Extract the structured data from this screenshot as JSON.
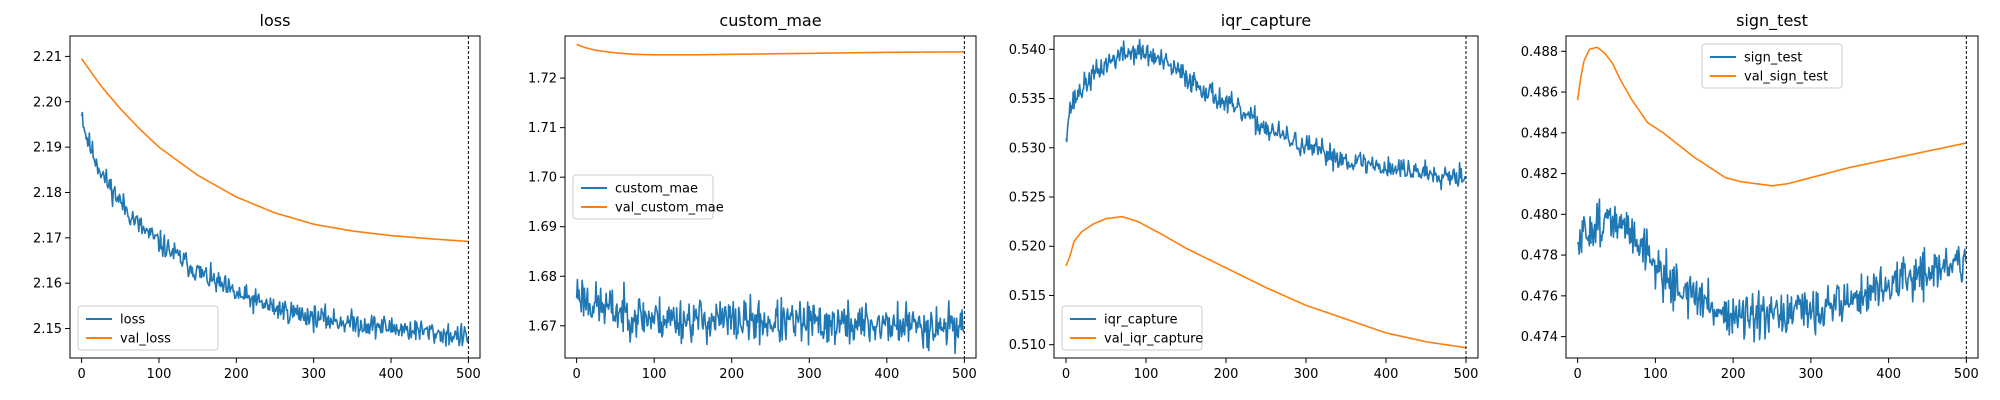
{
  "figure": {
    "background": "#ffffff"
  },
  "chart_data": [
    {
      "type": "line",
      "title": "loss",
      "xlabel": "",
      "ylabel": "",
      "xlim": [
        -15,
        515
      ],
      "ylim": [
        2.1435,
        2.2145
      ],
      "xticks": [
        0,
        100,
        200,
        300,
        400,
        500
      ],
      "yticks": [
        2.15,
        2.16,
        2.17,
        2.18,
        2.19,
        2.2,
        2.21
      ],
      "ytick_labels": [
        "2.15",
        "2.16",
        "2.17",
        "2.18",
        "2.19",
        "2.20",
        "2.21"
      ],
      "vline_x": 500,
      "legend_loc": "lower-left",
      "series": [
        {
          "name": "loss",
          "color": "#1f77b4",
          "noisy": true,
          "noise": 0.0013,
          "seed": 11,
          "x": [
            0,
            2,
            5,
            10,
            20,
            30,
            50,
            75,
            100,
            150,
            200,
            250,
            300,
            350,
            400,
            450,
            500
          ],
          "values": [
            2.1985,
            2.196,
            2.193,
            2.1905,
            2.1865,
            2.183,
            2.178,
            2.1725,
            2.169,
            2.1625,
            2.1575,
            2.1545,
            2.1525,
            2.1512,
            2.1502,
            2.1492,
            2.148
          ]
        },
        {
          "name": "val_loss",
          "color": "#ff7f0e",
          "noisy": false,
          "x": [
            0,
            25,
            50,
            75,
            100,
            150,
            200,
            250,
            300,
            350,
            400,
            450,
            500
          ],
          "values": [
            2.2095,
            2.2035,
            2.1985,
            2.194,
            2.19,
            2.1838,
            2.179,
            2.1755,
            2.173,
            2.1715,
            2.1705,
            2.1698,
            2.1692
          ]
        }
      ]
    },
    {
      "type": "line",
      "title": "custom_mae",
      "xlabel": "",
      "ylabel": "",
      "xlim": [
        -15,
        515
      ],
      "ylim": [
        1.6635,
        1.7285
      ],
      "xticks": [
        0,
        100,
        200,
        300,
        400,
        500
      ],
      "yticks": [
        1.67,
        1.68,
        1.69,
        1.7,
        1.71,
        1.72
      ],
      "ytick_labels": [
        "1.67",
        "1.68",
        "1.69",
        "1.70",
        "1.71",
        "1.72"
      ],
      "vline_x": 500,
      "legend_loc": "center-left",
      "series": [
        {
          "name": "custom_mae",
          "color": "#1f77b4",
          "noisy": true,
          "noise": 0.0022,
          "seed": 23,
          "x": [
            0,
            5,
            10,
            20,
            50,
            100,
            200,
            300,
            400,
            500
          ],
          "values": [
            1.677,
            1.6765,
            1.6755,
            1.6745,
            1.673,
            1.6715,
            1.671,
            1.6705,
            1.6702,
            1.67
          ]
        },
        {
          "name": "val_custom_mae",
          "color": "#ff7f0e",
          "noisy": false,
          "x": [
            0,
            10,
            25,
            50,
            75,
            100,
            150,
            200,
            300,
            400,
            500
          ],
          "values": [
            1.7268,
            1.7262,
            1.7256,
            1.7251,
            1.7248,
            1.7247,
            1.7247,
            1.7248,
            1.725,
            1.7252,
            1.7253
          ]
        }
      ]
    },
    {
      "type": "line",
      "title": "iqr_capture",
      "xlabel": "",
      "ylabel": "",
      "xlim": [
        -15,
        515
      ],
      "ylim": [
        0.50865,
        0.54135
      ],
      "xticks": [
        0,
        100,
        200,
        300,
        400,
        500
      ],
      "yticks": [
        0.51,
        0.515,
        0.52,
        0.525,
        0.53,
        0.535,
        0.54
      ],
      "ytick_labels": [
        "0.510",
        "0.515",
        "0.520",
        "0.525",
        "0.530",
        "0.535",
        "0.540"
      ],
      "vline_x": 500,
      "legend_loc": "lower-left",
      "series": [
        {
          "name": "iqr_capture",
          "color": "#1f77b4",
          "noisy": true,
          "noise": 0.0006,
          "seed": 37,
          "x": [
            0,
            5,
            15,
            30,
            50,
            70,
            90,
            110,
            150,
            200,
            250,
            300,
            350,
            400,
            450,
            500
          ],
          "values": [
            0.5315,
            0.534,
            0.5355,
            0.537,
            0.5385,
            0.5395,
            0.5398,
            0.5392,
            0.5372,
            0.5345,
            0.532,
            0.53,
            0.5288,
            0.528,
            0.5275,
            0.5272
          ]
        },
        {
          "name": "val_iqr_capture",
          "color": "#ff7f0e",
          "noisy": false,
          "x": [
            0,
            5,
            10,
            20,
            35,
            50,
            70,
            90,
            120,
            150,
            200,
            250,
            300,
            350,
            400,
            450,
            500
          ],
          "values": [
            0.518,
            0.519,
            0.5205,
            0.5215,
            0.5223,
            0.5228,
            0.523,
            0.5225,
            0.5212,
            0.5198,
            0.5178,
            0.5158,
            0.514,
            0.5126,
            0.5112,
            0.5103,
            0.5097
          ]
        }
      ]
    },
    {
      "type": "line",
      "title": "sign_test",
      "xlabel": "",
      "ylabel": "",
      "xlim": [
        -15,
        515
      ],
      "ylim": [
        0.47295,
        0.48875
      ],
      "xticks": [
        0,
        100,
        200,
        300,
        400,
        500
      ],
      "yticks": [
        0.474,
        0.476,
        0.478,
        0.48,
        0.482,
        0.484,
        0.486,
        0.488
      ],
      "ytick_labels": [
        "0.474",
        "0.476",
        "0.478",
        "0.480",
        "0.482",
        "0.484",
        "0.486",
        "0.488"
      ],
      "vline_x": 500,
      "legend_loc": "upper-center",
      "series": [
        {
          "name": "sign_test",
          "color": "#1f77b4",
          "noisy": true,
          "noise": 0.00055,
          "seed": 51,
          "x": [
            0,
            5,
            15,
            30,
            50,
            75,
            100,
            125,
            150,
            175,
            200,
            225,
            250,
            300,
            350,
            400,
            450,
            500
          ],
          "values": [
            0.4782,
            0.4788,
            0.4793,
            0.4797,
            0.4795,
            0.479,
            0.4775,
            0.4765,
            0.476,
            0.4754,
            0.475,
            0.4748,
            0.4749,
            0.4753,
            0.4758,
            0.4765,
            0.4772,
            0.4777
          ]
        },
        {
          "name": "val_sign_test",
          "color": "#ff7f0e",
          "noisy": false,
          "x": [
            0,
            3,
            8,
            15,
            25,
            35,
            45,
            55,
            70,
            90,
            110,
            130,
            150,
            170,
            190,
            210,
            230,
            250,
            270,
            300,
            350,
            400,
            450,
            500
          ],
          "values": [
            0.4856,
            0.4865,
            0.4875,
            0.4881,
            0.4882,
            0.4879,
            0.4874,
            0.4866,
            0.4856,
            0.4845,
            0.484,
            0.4834,
            0.4828,
            0.4823,
            0.4818,
            0.4816,
            0.4815,
            0.4814,
            0.4815,
            0.4818,
            0.4823,
            0.4827,
            0.4831,
            0.4835
          ]
        }
      ]
    }
  ]
}
